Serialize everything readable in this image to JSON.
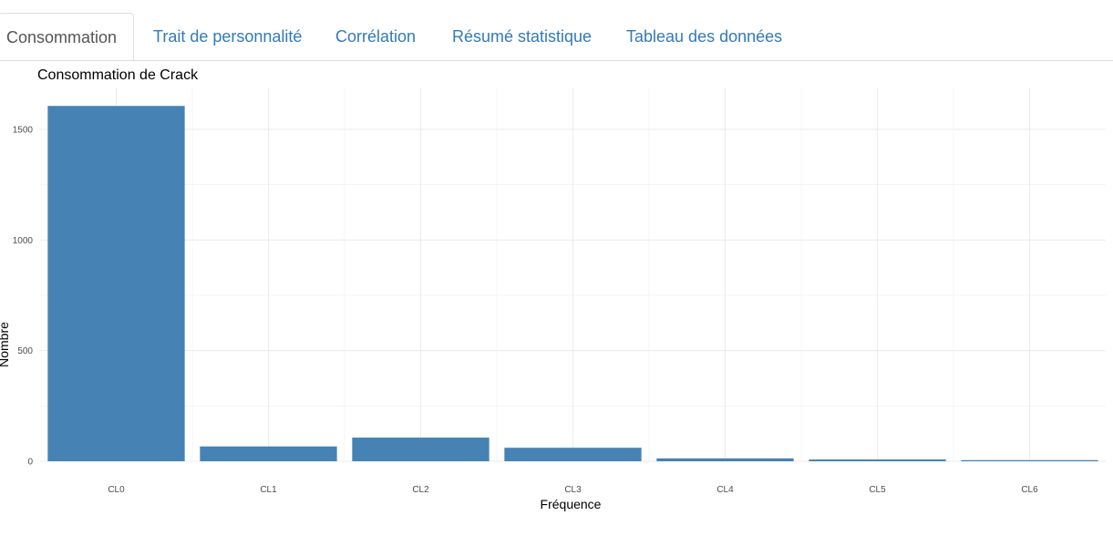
{
  "tabs": [
    {
      "label": "Consommation",
      "active": true
    },
    {
      "label": "Trait de personnalité",
      "active": false
    },
    {
      "label": "Corrélation",
      "active": false
    },
    {
      "label": "Résumé statistique",
      "active": false
    },
    {
      "label": "Tableau des données",
      "active": false
    }
  ],
  "colors": {
    "bar": "#4682b4",
    "tab_link": "#337ab7",
    "tab_active": "#555555"
  },
  "chart_data": {
    "type": "bar",
    "title": "Consommation de Crack",
    "xlabel": "Fréquence",
    "ylabel": "Nombre",
    "categories": [
      "CL0",
      "CL1",
      "CL2",
      "CL3",
      "CL4",
      "CL5",
      "CL6"
    ],
    "values": [
      1606,
      67,
      107,
      61,
      13,
      8,
      5
    ],
    "ylim": [
      0,
      1606
    ],
    "yticks": [
      0,
      500,
      1000,
      1500
    ],
    "grid": true,
    "legend": "none"
  }
}
